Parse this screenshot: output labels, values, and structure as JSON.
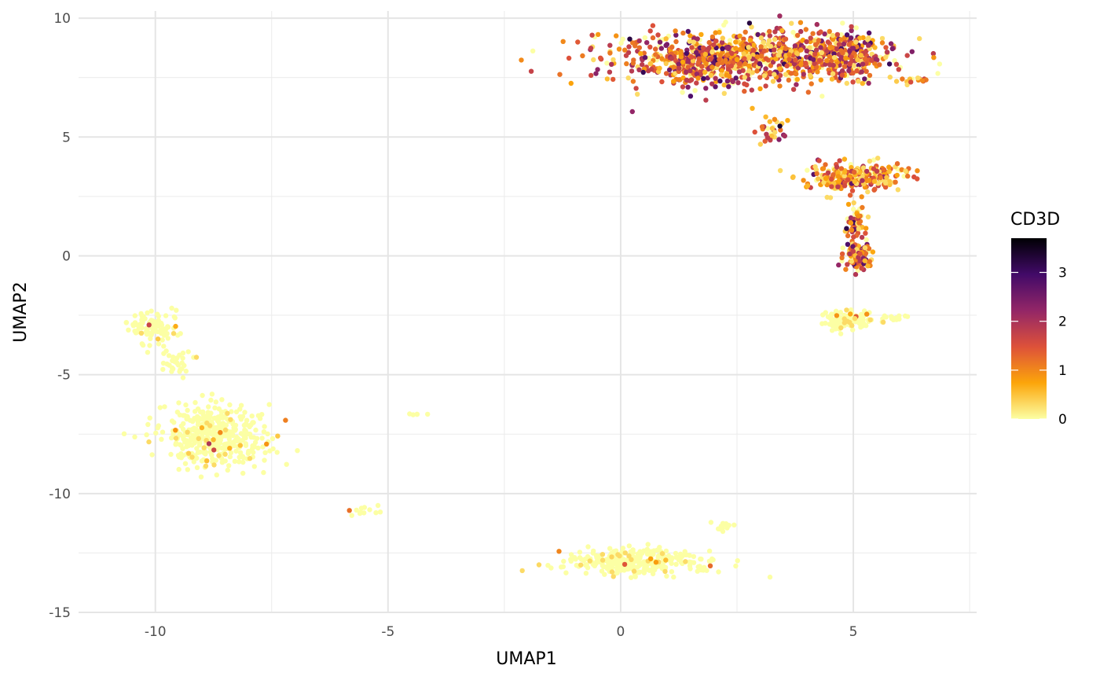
{
  "chart_data": {
    "type": "scatter",
    "title": "",
    "xlabel": "UMAP1",
    "ylabel": "UMAP2",
    "xlim": [
      -11.65,
      7.65
    ],
    "ylim": [
      -15.0,
      10.3
    ],
    "x_ticks": [
      -10,
      -5,
      0,
      5
    ],
    "x_tick_labels": [
      "-10",
      "-5",
      "0",
      "5"
    ],
    "y_ticks": [
      10,
      5,
      0,
      -5,
      -10,
      -15
    ],
    "y_tick_labels": [
      "10",
      "5",
      "0",
      "-5",
      "-10",
      "-15"
    ],
    "grid": true,
    "legend": {
      "title": "CD3D",
      "placement": "right",
      "type": "colorbar",
      "range": [
        0,
        3.7
      ],
      "ticks": [
        0,
        1,
        2,
        3
      ],
      "tick_labels": [
        "0",
        "1",
        "2",
        "3"
      ],
      "colormap": "inferno-reversed",
      "colors": [
        "#FCFFA4",
        "#FCA50A",
        "#DD513A",
        "#932667",
        "#420A68",
        "#000004"
      ]
    },
    "clusters": [
      {
        "name": "",
        "center": [
          -10.1,
          -2.9
        ],
        "spread": [
          0.45,
          0.6
        ],
        "n": 90,
        "expr_mean": 0.02,
        "expressing_fraction": 0.03
      },
      {
        "name": "",
        "center": [
          -9.6,
          -4.5
        ],
        "spread": [
          0.25,
          0.5
        ],
        "n": 30,
        "expr_mean": 0.02,
        "expressing_fraction": 0.03
      },
      {
        "name": "",
        "center": [
          -8.7,
          -7.6
        ],
        "spread": [
          1.0,
          1.1
        ],
        "n": 420,
        "expr_mean": 0.05,
        "expressing_fraction": 0.06
      },
      {
        "name": "",
        "center": [
          -4.5,
          -6.65
        ],
        "spread": [
          0.15,
          0.05
        ],
        "n": 5,
        "expr_mean": 0.0,
        "expressing_fraction": 0.0
      },
      {
        "name": "",
        "center": [
          -5.5,
          -10.7
        ],
        "spread": [
          0.3,
          0.15
        ],
        "n": 12,
        "expr_mean": 0.1,
        "expressing_fraction": 0.1
      },
      {
        "name": "",
        "center": [
          0.3,
          -12.9
        ],
        "spread": [
          1.3,
          0.45
        ],
        "n": 320,
        "expr_mean": 0.06,
        "expressing_fraction": 0.07
      },
      {
        "name": "",
        "center": [
          2.2,
          -11.4
        ],
        "spread": [
          0.3,
          0.3
        ],
        "n": 12,
        "expr_mean": 0.2,
        "expressing_fraction": 0.25
      },
      {
        "name": "",
        "center": [
          2.5,
          8.3
        ],
        "spread": [
          2.3,
          0.9
        ],
        "n": 900,
        "expr_mean": 1.3,
        "expressing_fraction": 0.85
      },
      {
        "name": "",
        "center": [
          4.8,
          8.4
        ],
        "spread": [
          0.9,
          0.9
        ],
        "n": 250,
        "expr_mean": 1.3,
        "expressing_fraction": 0.85
      },
      {
        "name": "",
        "center": [
          6.3,
          7.4
        ],
        "spread": [
          0.3,
          0.1
        ],
        "n": 15,
        "expr_mean": 1.0,
        "expressing_fraction": 0.9
      },
      {
        "name": "",
        "center": [
          3.3,
          5.2
        ],
        "spread": [
          0.3,
          0.5
        ],
        "n": 30,
        "expr_mean": 1.3,
        "expressing_fraction": 0.85
      },
      {
        "name": "",
        "center": [
          5.0,
          3.3
        ],
        "spread": [
          0.9,
          0.5
        ],
        "n": 280,
        "expr_mean": 1.0,
        "expressing_fraction": 0.8
      },
      {
        "name": "",
        "center": [
          5.1,
          1.4
        ],
        "spread": [
          0.2,
          0.5
        ],
        "n": 50,
        "expr_mean": 1.2,
        "expressing_fraction": 0.85
      },
      {
        "name": "",
        "center": [
          5.1,
          0.0
        ],
        "spread": [
          0.25,
          0.55
        ],
        "n": 120,
        "expr_mean": 1.4,
        "expressing_fraction": 0.85
      },
      {
        "name": "",
        "center": [
          4.9,
          -2.7
        ],
        "spread": [
          0.45,
          0.3
        ],
        "n": 140,
        "expr_mean": 0.1,
        "expressing_fraction": 0.12
      },
      {
        "name": "",
        "center": [
          5.9,
          -2.6
        ],
        "spread": [
          0.35,
          0.1
        ],
        "n": 12,
        "expr_mean": 0.0,
        "expressing_fraction": 0.0
      }
    ]
  }
}
